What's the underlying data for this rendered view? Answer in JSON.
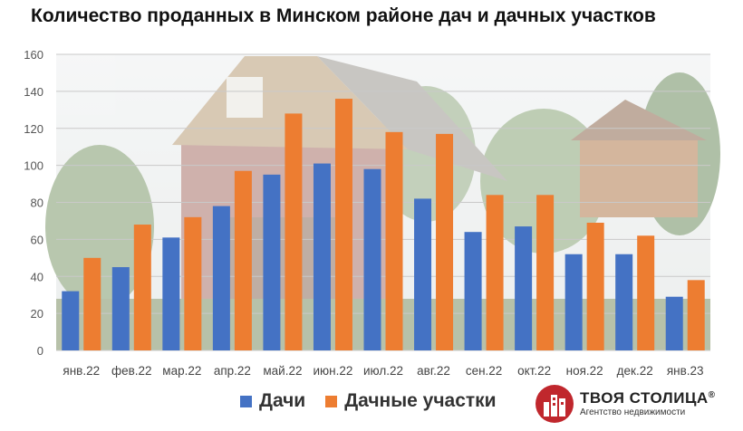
{
  "title": "Количество проданных в Минском районе дач и дачных участков",
  "chart_data": {
    "type": "bar",
    "categories": [
      "янв.22",
      "фев.22",
      "мар.22",
      "апр.22",
      "май.22",
      "июн.22",
      "июл.22",
      "авг.22",
      "сен.22",
      "окт.22",
      "ноя.22",
      "дек.22",
      "янв.23"
    ],
    "series": [
      {
        "name": "Дачи",
        "color": "#4472c4",
        "values": [
          32,
          45,
          61,
          78,
          95,
          101,
          98,
          82,
          64,
          67,
          52,
          52,
          29
        ]
      },
      {
        "name": "Дачные участки",
        "color": "#ed7d31",
        "values": [
          50,
          68,
          72,
          97,
          128,
          136,
          118,
          117,
          84,
          84,
          69,
          62,
          38
        ]
      }
    ],
    "ylim": [
      0,
      160
    ],
    "yticks": [
      0,
      20,
      40,
      60,
      80,
      100,
      120,
      140,
      160
    ],
    "grid": true,
    "legend_position": "bottom",
    "background": "photo of country houses"
  },
  "logo": {
    "name": "ТВОЯ СТОЛИЦА",
    "registered_mark": "®",
    "tagline": "Агентство недвижимости",
    "color": "#c0272d"
  }
}
